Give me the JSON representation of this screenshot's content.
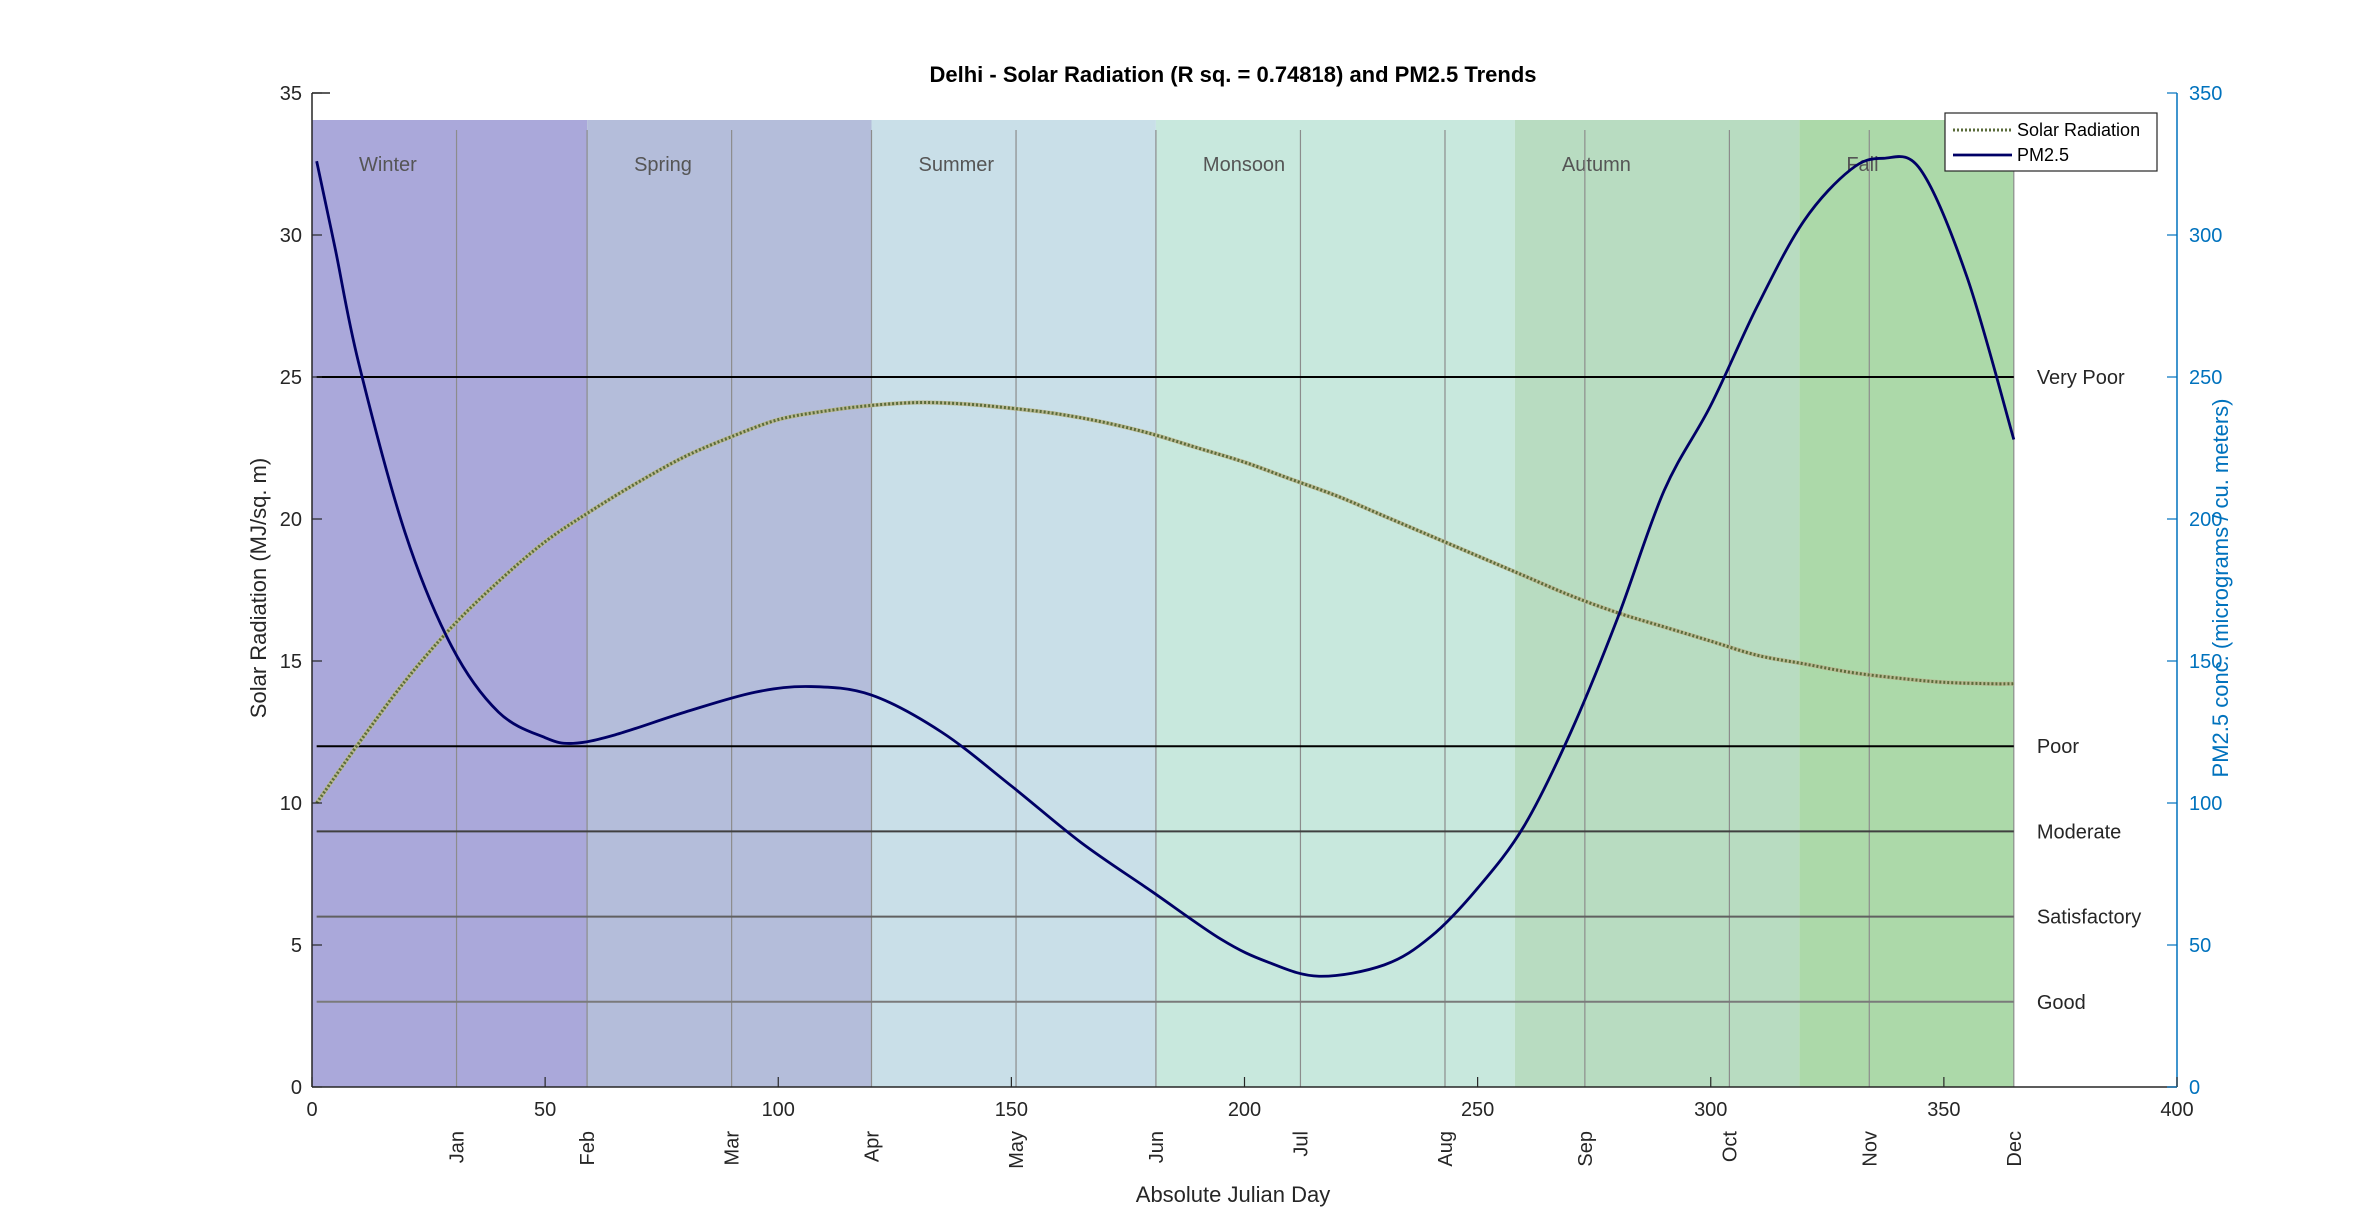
{
  "chart_data": {
    "type": "line",
    "title": "Delhi - Solar Radiation (R sq. = 0.74818) and PM2.5 Trends",
    "xlabel": "Absolute Julian Day",
    "ylabel_left": "Solar Radiation (MJ/sq. m)",
    "ylabel_right": "PM2.5 conc. (micrograms / cu. meters)",
    "xlim": [
      0,
      400
    ],
    "ylim_left": [
      0,
      35
    ],
    "ylim_right": [
      0,
      350
    ],
    "xticks": [
      0,
      50,
      100,
      150,
      200,
      250,
      300,
      350,
      400
    ],
    "yticks_left": [
      0,
      5,
      10,
      15,
      20,
      25,
      30,
      35
    ],
    "yticks_right": [
      0,
      50,
      100,
      150,
      200,
      250,
      300,
      350
    ],
    "grid": false,
    "legend_position": "top-right",
    "month_ticks": [
      {
        "label": "Jan",
        "day": 31
      },
      {
        "label": "Feb",
        "day": 59
      },
      {
        "label": "Mar",
        "day": 90
      },
      {
        "label": "Apr",
        "day": 120
      },
      {
        "label": "May",
        "day": 151
      },
      {
        "label": "Jun",
        "day": 181
      },
      {
        "label": "Jul",
        "day": 212
      },
      {
        "label": "Aug",
        "day": 243
      },
      {
        "label": "Sep",
        "day": 273
      },
      {
        "label": "Oct",
        "day": 304
      },
      {
        "label": "Nov",
        "day": 334
      },
      {
        "label": "Dec",
        "day": 365
      }
    ],
    "seasons": [
      {
        "name": "Winter",
        "start": 0,
        "end": 59,
        "color": "#aaa8da"
      },
      {
        "name": "Spring",
        "start": 59,
        "end": 120,
        "color": "#b4bdda"
      },
      {
        "name": "Summer",
        "start": 120,
        "end": 181,
        "color": "#c9dfe8"
      },
      {
        "name": "Monsoon",
        "start": 181,
        "end": 258,
        "color": "#c8e8dd"
      },
      {
        "name": "Autumn",
        "start": 258,
        "end": 319,
        "color": "#b8dcc1"
      },
      {
        "name": "Fall",
        "start": 319,
        "end": 365,
        "color": "#acd9a9"
      }
    ],
    "aqi_levels": [
      {
        "label": "Very Poor",
        "value": 25,
        "color": "#000000"
      },
      {
        "label": "Poor",
        "value": 12,
        "color": "#000000"
      },
      {
        "label": "Moderate",
        "value": 9,
        "color": "#404040"
      },
      {
        "label": "Satisfactory",
        "value": 6,
        "color": "#606060"
      },
      {
        "label": "Good",
        "value": 3,
        "color": "#7a7a7a"
      }
    ],
    "series": [
      {
        "name": "Solar Radiation",
        "axis": "left",
        "color": "#5a6b3a",
        "style": "dotted",
        "x": [
          1,
          10,
          20,
          30,
          40,
          50,
          60,
          70,
          80,
          90,
          100,
          110,
          120,
          130,
          140,
          150,
          160,
          170,
          180,
          190,
          200,
          210,
          220,
          230,
          240,
          250,
          260,
          270,
          280,
          290,
          300,
          310,
          320,
          330,
          340,
          350,
          360,
          365
        ],
        "values": [
          10.0,
          12.1,
          14.3,
          16.2,
          17.8,
          19.2,
          20.3,
          21.3,
          22.2,
          22.9,
          23.5,
          23.8,
          24.0,
          24.1,
          24.05,
          23.9,
          23.7,
          23.4,
          23.0,
          22.5,
          22.0,
          21.4,
          20.8,
          20.1,
          19.4,
          18.7,
          18.0,
          17.3,
          16.7,
          16.2,
          15.7,
          15.2,
          14.9,
          14.6,
          14.4,
          14.25,
          14.2,
          14.2
        ]
      },
      {
        "name": "PM2.5",
        "axis": "right",
        "color": "#000066",
        "style": "solid",
        "x": [
          1,
          5,
          10,
          20,
          30,
          40,
          50,
          56,
          65,
          80,
          95,
          107,
          120,
          135,
          150,
          165,
          180,
          195,
          205,
          216,
          230,
          240,
          250,
          260,
          270,
          280,
          290,
          300,
          310,
          320,
          330,
          337,
          345,
          355,
          365
        ],
        "values": [
          326,
          295,
          255,
          195,
          155,
          132,
          123,
          121,
          124,
          132,
          139,
          141,
          138,
          125,
          106,
          86,
          69,
          52,
          44,
          39,
          43,
          53,
          70,
          92,
          125,
          165,
          210,
          240,
          275,
          305,
          323,
          327,
          323,
          285,
          228
        ]
      }
    ]
  }
}
